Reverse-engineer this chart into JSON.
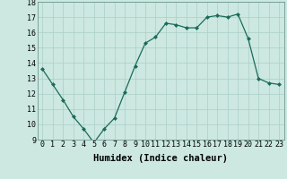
{
  "x": [
    0,
    1,
    2,
    3,
    4,
    5,
    6,
    7,
    8,
    9,
    10,
    11,
    12,
    13,
    14,
    15,
    16,
    17,
    18,
    19,
    20,
    21,
    22,
    23
  ],
  "y": [
    13.6,
    12.6,
    11.6,
    10.5,
    9.7,
    8.8,
    9.7,
    10.4,
    12.1,
    13.8,
    15.3,
    15.7,
    16.6,
    16.5,
    16.3,
    16.3,
    17.0,
    17.1,
    17.0,
    17.2,
    15.6,
    13.0,
    12.7,
    12.6
  ],
  "xlabel": "Humidex (Indice chaleur)",
  "ylim": [
    9,
    18
  ],
  "xlim": [
    -0.5,
    23.5
  ],
  "yticks": [
    9,
    10,
    11,
    12,
    13,
    14,
    15,
    16,
    17,
    18
  ],
  "xticks": [
    0,
    1,
    2,
    3,
    4,
    5,
    6,
    7,
    8,
    9,
    10,
    11,
    12,
    13,
    14,
    15,
    16,
    17,
    18,
    19,
    20,
    21,
    22,
    23
  ],
  "line_color": "#1a6b5a",
  "marker": "D",
  "marker_size": 2.0,
  "bg_color": "#cce8e0",
  "grid_color": "#aacfc8",
  "label_fontsize": 7.5,
  "tick_fontsize": 6.0
}
